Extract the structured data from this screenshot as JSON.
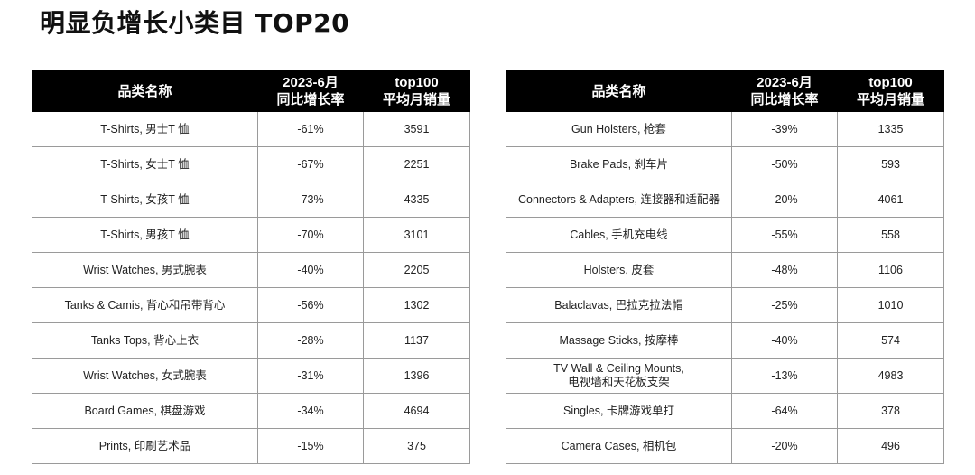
{
  "title": "明显负增长小类目 TOP20",
  "headers": {
    "category": "品类名称",
    "growth_line1": "2023-6月",
    "growth_line2": "同比增长率",
    "sales_line1": "top100",
    "sales_line2": "平均月销量"
  },
  "left_table": [
    {
      "name": "T-Shirts, 男士T 恤",
      "growth": "-61%",
      "sales": "3591"
    },
    {
      "name": "T-Shirts, 女士T 恤",
      "growth": "-67%",
      "sales": "2251"
    },
    {
      "name": "T-Shirts, 女孩T 恤",
      "growth": "-73%",
      "sales": "4335"
    },
    {
      "name": "T-Shirts, 男孩T 恤",
      "growth": "-70%",
      "sales": "3101"
    },
    {
      "name": "Wrist Watches, 男式腕表",
      "growth": "-40%",
      "sales": "2205"
    },
    {
      "name": "Tanks & Camis, 背心和吊带背心",
      "growth": "-56%",
      "sales": "1302"
    },
    {
      "name": "Tanks Tops, 背心上衣",
      "growth": "-28%",
      "sales": "1137"
    },
    {
      "name": "Wrist Watches, 女式腕表",
      "growth": "-31%",
      "sales": "1396"
    },
    {
      "name": "Board Games, 棋盘游戏",
      "growth": "-34%",
      "sales": "4694"
    },
    {
      "name": "Prints, 印刷艺术品",
      "growth": "-15%",
      "sales": "375"
    }
  ],
  "right_table": [
    {
      "name": "Gun Holsters, 枪套",
      "growth": "-39%",
      "sales": "1335"
    },
    {
      "name": "Brake Pads, 刹车片",
      "growth": "-50%",
      "sales": "593"
    },
    {
      "name": "Connectors & Adapters, 连接器和适配器",
      "growth": "-20%",
      "sales": "4061"
    },
    {
      "name": "Cables, 手机充电线",
      "growth": "-55%",
      "sales": "558"
    },
    {
      "name": "Holsters, 皮套",
      "growth": "-48%",
      "sales": "1106"
    },
    {
      "name": "Balaclavas, 巴拉克拉法帽",
      "growth": "-25%",
      "sales": "1010"
    },
    {
      "name": "Massage Sticks, 按摩棒",
      "growth": "-40%",
      "sales": "574"
    },
    {
      "name": "TV Wall & Ceiling Mounts,\n电视墙和天花板支架",
      "growth": "-13%",
      "sales": "4983"
    },
    {
      "name": "Singles, 卡牌游戏单打",
      "growth": "-64%",
      "sales": "378"
    },
    {
      "name": "Camera Cases, 相机包",
      "growth": "-20%",
      "sales": "496"
    }
  ]
}
